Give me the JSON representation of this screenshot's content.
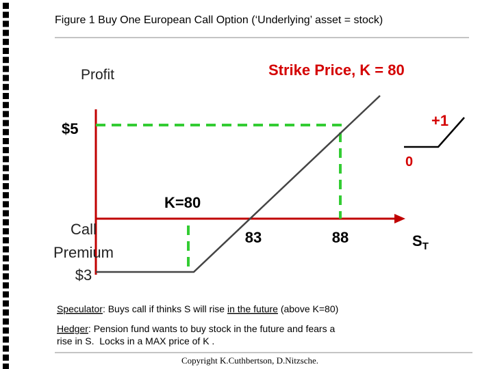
{
  "header": {
    "title": "Figure 1  Buy One European Call Option (‘Underlying’ asset = stock)"
  },
  "diagram": {
    "y_axis_label": "Profit",
    "heading": "Strike Price, K = 80",
    "profit_level": "$5",
    "inset_slope": "+1",
    "inset_zero": "0",
    "strike_label": "K=80",
    "premium_label": [
      "Call",
      "Premium",
      "$3"
    ],
    "x_labels": [
      "83",
      "88"
    ],
    "x_axis_label": {
      "main": "S",
      "sub": "T"
    }
  },
  "notes": {
    "speculator": [
      "Speculator",
      ": Buys call if thinks S will rise ",
      "in the future",
      " (above K=80)"
    ],
    "hedger": [
      "Hedger",
      ": Pension fund wants to buy stock in the future and fears a",
      "rise in S.  Locks in a MAX price of K ."
    ]
  },
  "footer": {
    "copyright": "Copyright K.Cuthbertson, D.Nitzsche."
  }
}
